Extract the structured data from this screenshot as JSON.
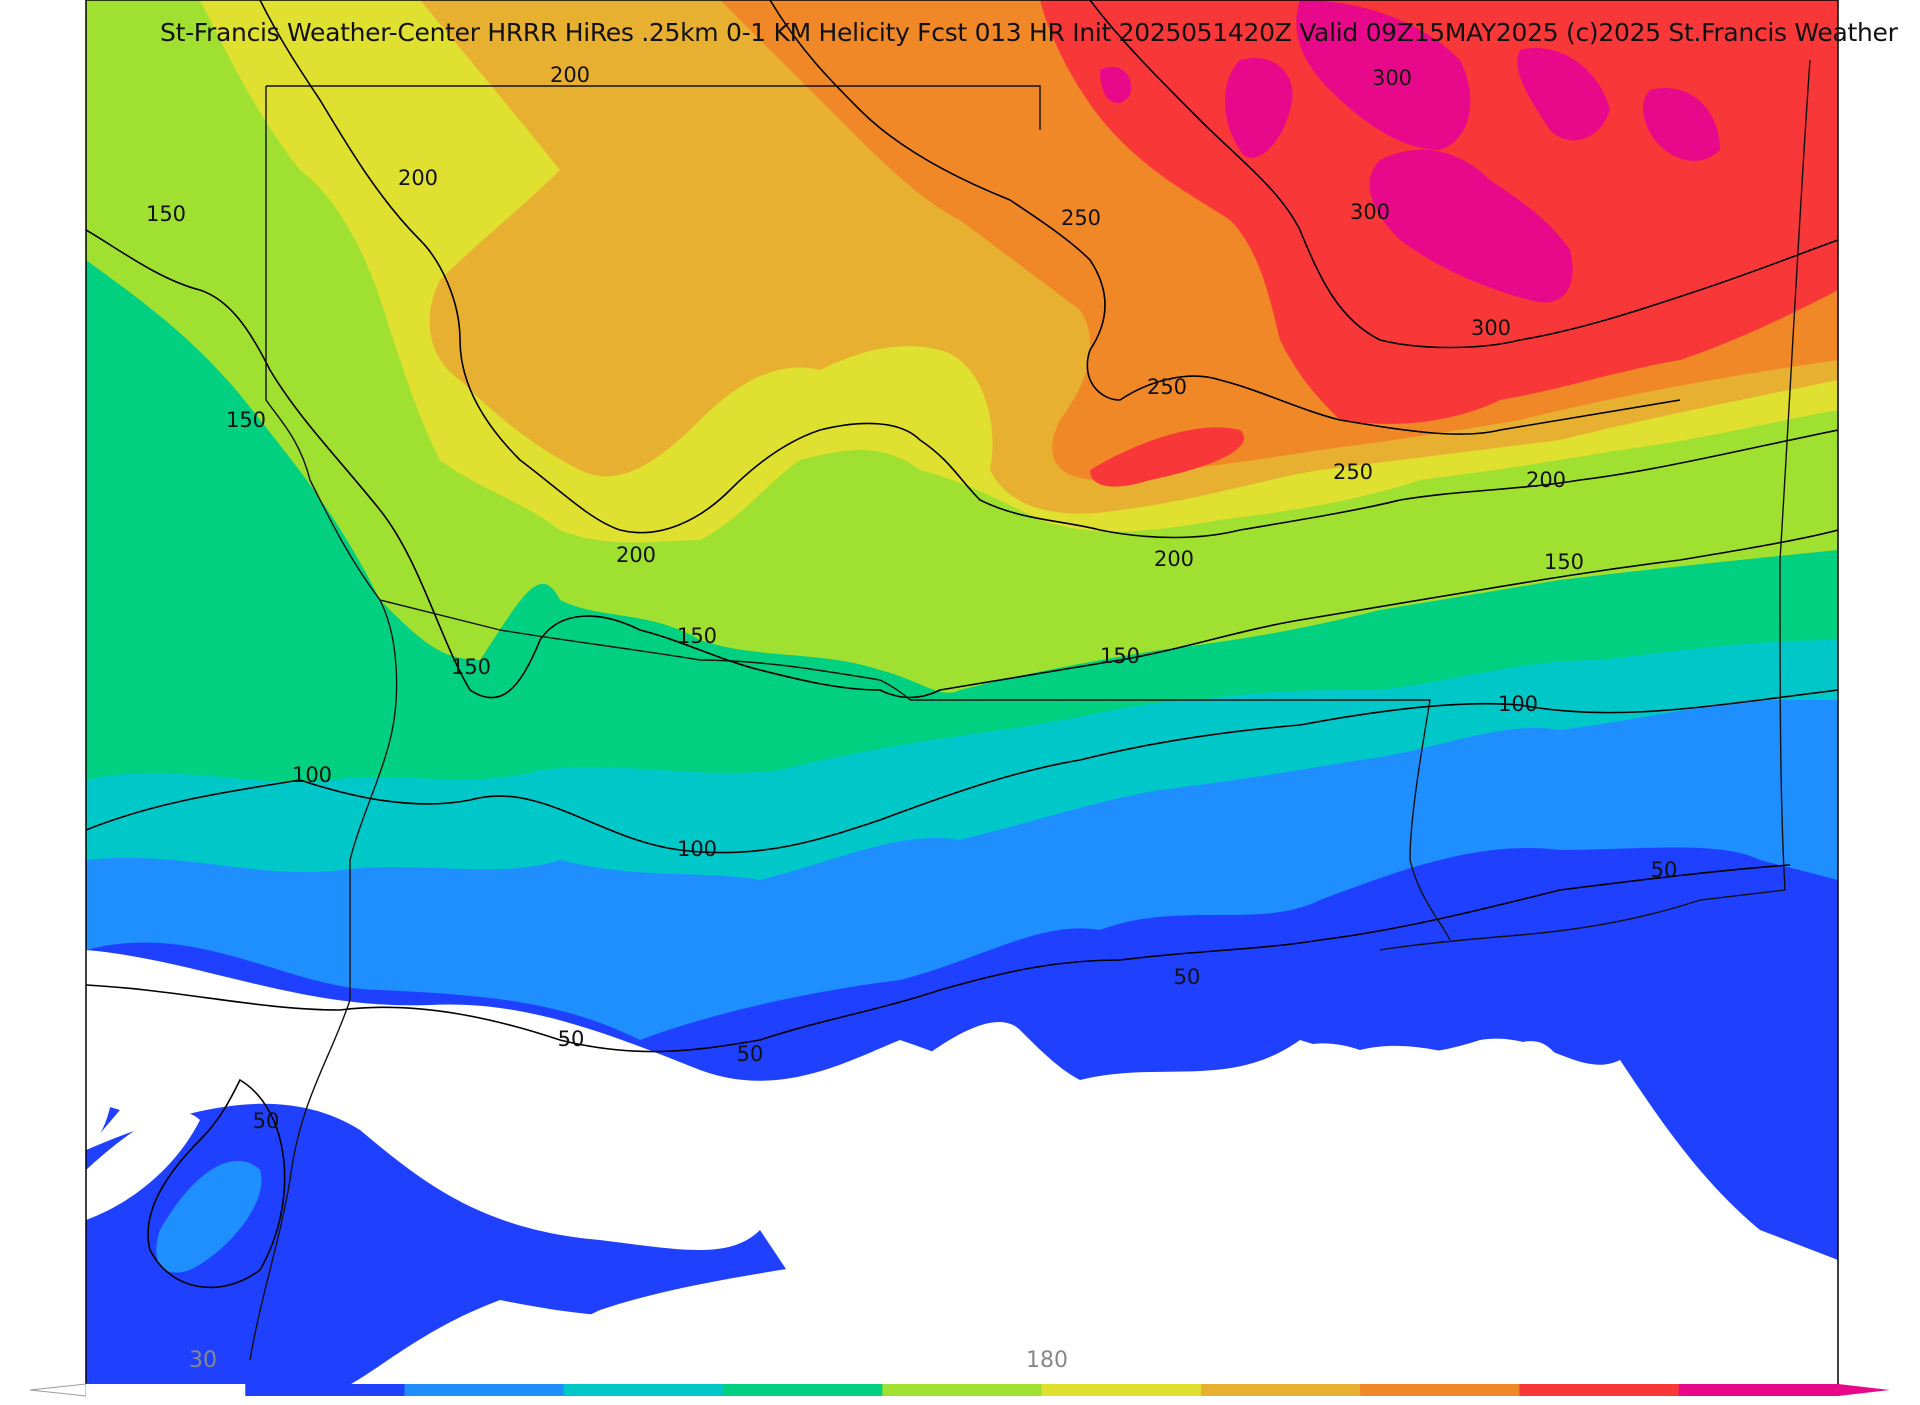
{
  "title": "St-Francis Weather-Center HRRR HiRes .25km 0-1 KM Helicity Fcst 013 HR Init 2025051420Z  Valid 09Z15MAY2025    (c)2025 St.Francis Weather",
  "contour_labels": [
    "200",
    "300",
    "200",
    "150",
    "250",
    "300",
    "300",
    "150",
    "250",
    "250",
    "200",
    "200",
    "200",
    "150",
    "150",
    "150",
    "150",
    "100",
    "100",
    "100",
    "50",
    "50",
    "50",
    "50",
    "50"
  ],
  "colorbar": {
    "tick_labels": [
      "30",
      "180"
    ],
    "colors": [
      "#ffffff",
      "#2040ff",
      "#1f8fff",
      "#00c8c8",
      "#00d080",
      "#a0e030",
      "#e0e030",
      "#e8b030",
      "#f08828",
      "#f83838",
      "#e8088a"
    ]
  },
  "field_colors": {
    "none": "#ffffff",
    "c30": "#2040ff",
    "c60": "#1f8fff",
    "c90": "#00c8c8",
    "c120": "#00d080",
    "c150": "#a0e030",
    "c180": "#e0e030",
    "c210": "#e8b030",
    "c240": "#f08828",
    "c270": "#f83838",
    "c300": "#e8088a"
  }
}
